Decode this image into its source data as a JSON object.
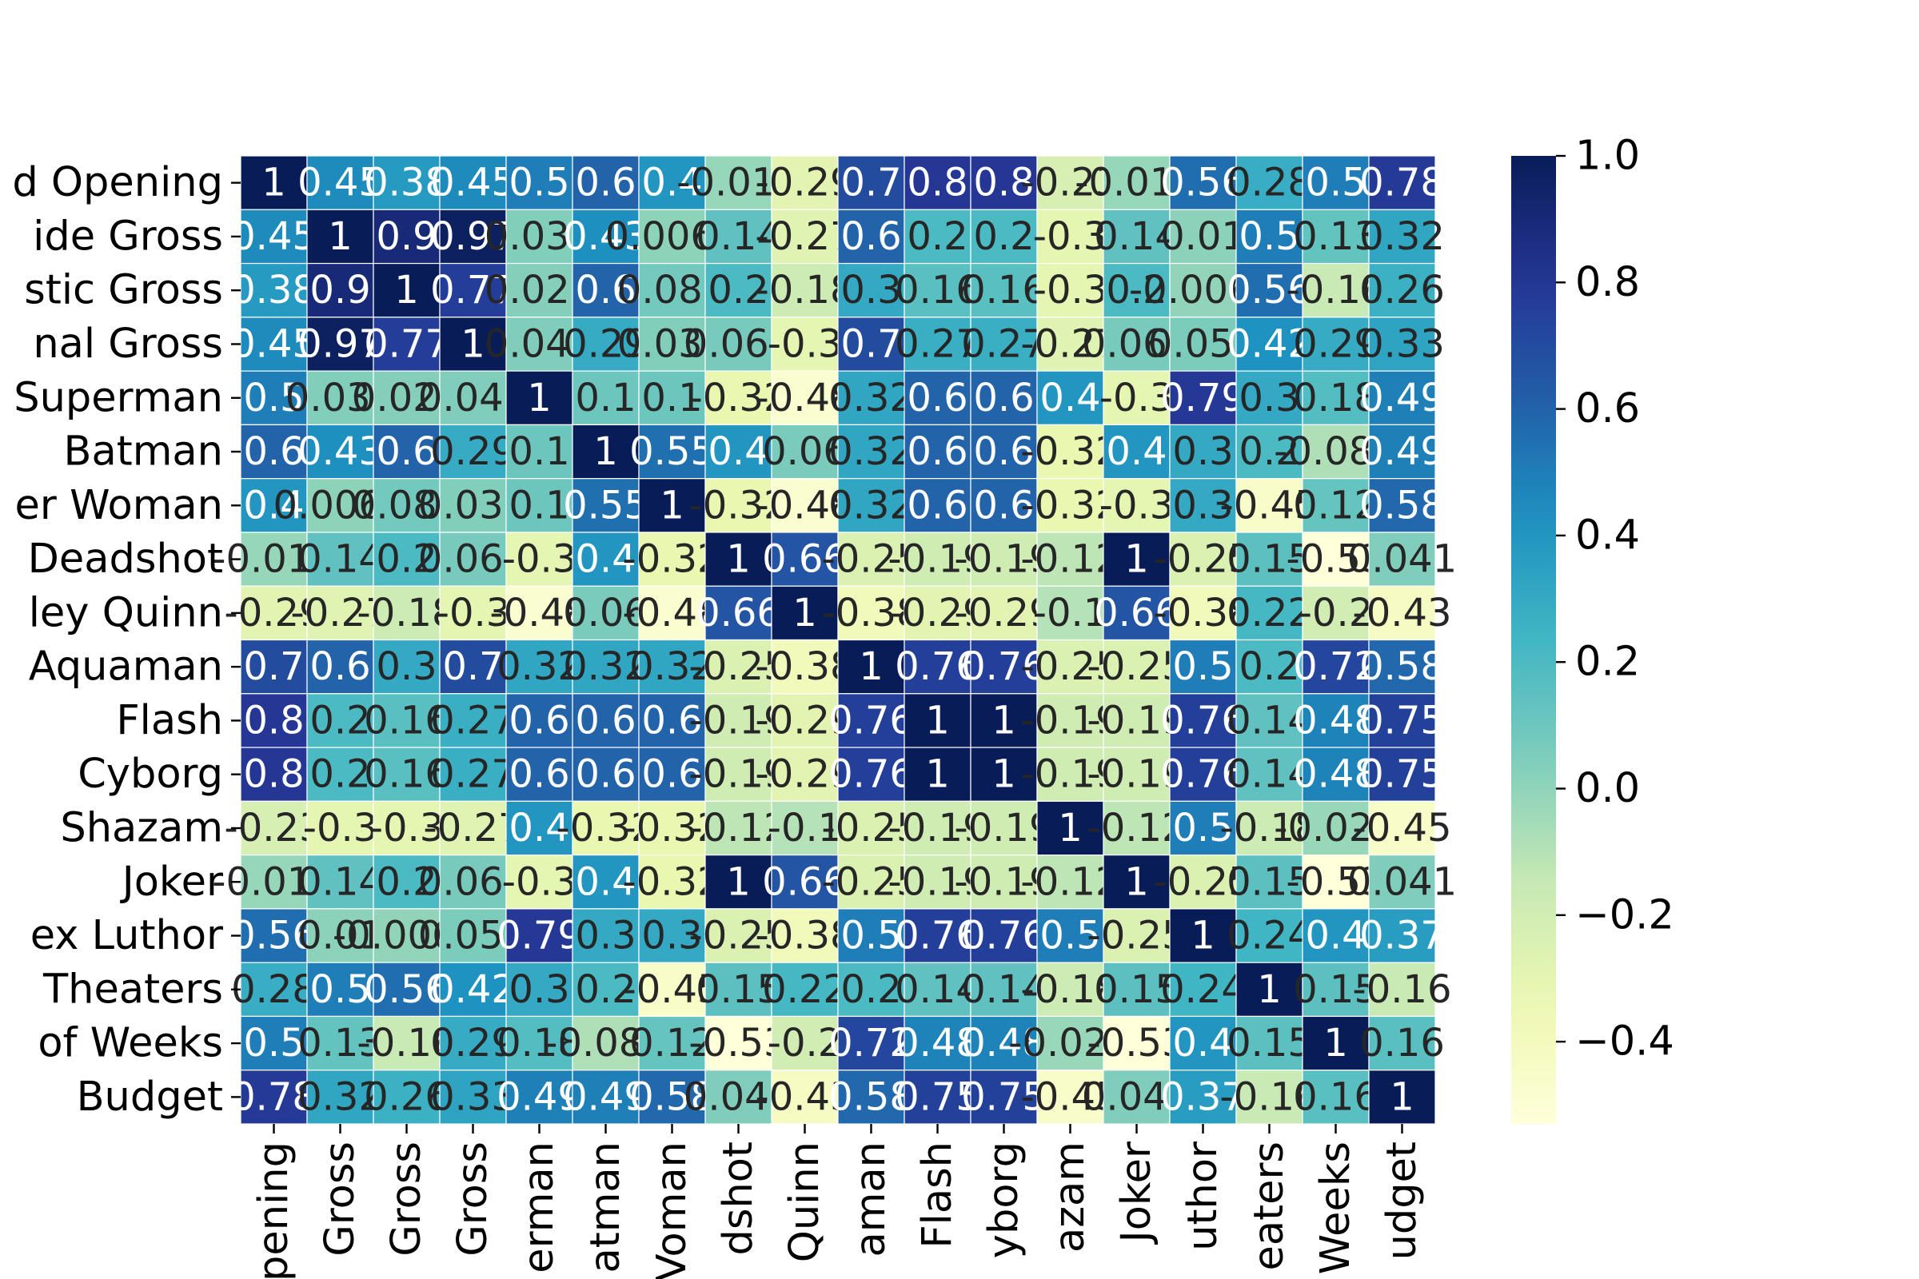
{
  "chart_data": {
    "type": "heatmap",
    "title": "",
    "xlabel": "",
    "ylabel": "",
    "colormap": "YlGnBu",
    "vmin": -0.53,
    "vmax": 1.0,
    "row_labels_visible": [
      "d Opening",
      "ide Gross",
      "stic Gross",
      "nal Gross",
      "Superman",
      "Batman",
      "er Woman",
      "Deadshot",
      "ley Quinn",
      "Aquaman",
      "Flash",
      "Cyborg",
      "Shazam",
      "Joker",
      "ex Luthor",
      "Theaters",
      "of Weeks",
      "Budget"
    ],
    "col_labels_visible": [
      "pening",
      "Gross",
      "Gross",
      "Gross",
      "erman",
      "atman",
      "Voman",
      "dshot",
      "Quinn",
      "aman",
      "Flash",
      "yborg",
      "azam",
      "Joker",
      "uthor",
      "eaters",
      "Weeks",
      "udget"
    ],
    "colorbar_ticks": [
      1.0,
      0.8,
      0.6,
      0.4,
      0.2,
      0.0,
      -0.2,
      -0.4
    ],
    "colorbar_tick_labels": [
      "1.0",
      "0.8",
      "0.6",
      "0.4",
      "0.2",
      "0.0",
      "−0.2",
      "−0.4"
    ],
    "values": [
      [
        1,
        0.45,
        0.38,
        0.45,
        0.5,
        0.6,
        0.4,
        -0.017,
        -0.29,
        0.7,
        0.8,
        0.8,
        -0.23,
        -0.017,
        0.56,
        0.28,
        0.5,
        0.78
      ],
      [
        0.45,
        1,
        0.9,
        0.97,
        0.039,
        0.43,
        0.0061,
        0.14,
        -0.27,
        0.6,
        0.2,
        0.2,
        -0.3,
        0.14,
        0.01,
        0.5,
        0.13,
        0.32
      ],
      [
        0.38,
        0.9,
        1,
        0.77,
        0.029,
        0.6,
        0.081,
        0.2,
        -0.18,
        0.3,
        0.16,
        0.16,
        -0.3,
        0.2,
        -0.0062,
        0.56,
        -0.16,
        0.26
      ],
      [
        0.45,
        0.97,
        0.77,
        1,
        0.042,
        0.29,
        0.038,
        0.065,
        -0.3,
        0.7,
        0.27,
        0.27,
        -0.27,
        0.065,
        0.052,
        0.42,
        0.29,
        0.33
      ],
      [
        0.5,
        0.039,
        0.029,
        0.042,
        1,
        0.1,
        0.1,
        -0.32,
        -0.48,
        0.32,
        0.6,
        0.6,
        0.4,
        -0.3,
        0.79,
        0.3,
        0.18,
        0.49
      ],
      [
        0.6,
        0.43,
        0.6,
        0.29,
        0.1,
        1,
        0.55,
        0.4,
        0.06,
        0.32,
        0.6,
        0.6,
        -0.32,
        0.4,
        0.3,
        0.2,
        -0.081,
        0.49
      ],
      [
        0.4,
        0.0061,
        0.081,
        0.038,
        0.1,
        0.55,
        1,
        -0.32,
        -0.48,
        0.32,
        0.6,
        0.6,
        -0.32,
        -0.3,
        0.3,
        -0.45,
        0.12,
        0.58
      ],
      [
        -0.017,
        0.14,
        0.2,
        0.065,
        -0.3,
        0.4,
        -0.32,
        1,
        0.66,
        -0.25,
        -0.19,
        -0.19,
        -0.12,
        1,
        -0.25,
        0.15,
        -0.53,
        0.041
      ],
      [
        -0.29,
        -0.27,
        -0.18,
        -0.3,
        -0.48,
        0.06,
        -0.48,
        0.66,
        1,
        -0.38,
        -0.29,
        -0.29,
        -0.1,
        0.66,
        -0.38,
        0.22,
        -0.2,
        -0.43
      ],
      [
        0.7,
        0.6,
        0.3,
        0.7,
        0.32,
        0.32,
        0.32,
        -0.25,
        -0.38,
        1,
        0.76,
        0.76,
        -0.25,
        -0.25,
        0.5,
        0.2,
        0.72,
        0.58
      ],
      [
        0.8,
        0.2,
        0.16,
        0.27,
        0.6,
        0.6,
        0.6,
        -0.19,
        -0.29,
        0.76,
        1,
        1,
        -0.19,
        -0.19,
        0.76,
        0.14,
        0.48,
        0.75
      ],
      [
        0.8,
        0.2,
        0.16,
        0.27,
        0.6,
        0.6,
        0.6,
        -0.19,
        -0.29,
        0.76,
        1,
        1,
        -0.19,
        -0.19,
        0.76,
        0.14,
        0.48,
        0.75
      ],
      [
        -0.23,
        -0.3,
        -0.3,
        -0.27,
        0.4,
        -0.32,
        -0.32,
        -0.12,
        -0.1,
        -0.25,
        -0.19,
        -0.19,
        1,
        -0.12,
        0.5,
        -0.18,
        -0.024,
        -0.45
      ],
      [
        -0.017,
        0.14,
        0.2,
        0.065,
        -0.3,
        0.4,
        -0.32,
        1,
        0.66,
        -0.25,
        -0.19,
        -0.19,
        -0.12,
        1,
        -0.25,
        0.15,
        -0.53,
        0.041
      ],
      [
        0.56,
        0.01,
        -0.0062,
        0.052,
        0.79,
        0.3,
        0.3,
        -0.25,
        -0.38,
        0.5,
        0.76,
        0.76,
        0.5,
        -0.25,
        1,
        0.24,
        0.4,
        0.37
      ],
      [
        0.28,
        0.5,
        0.56,
        0.42,
        0.3,
        0.2,
        -0.45,
        0.15,
        0.22,
        0.2,
        0.14,
        0.14,
        -0.18,
        0.15,
        0.24,
        1,
        0.15,
        -0.16
      ],
      [
        0.5,
        0.13,
        -0.16,
        0.29,
        0.18,
        -0.081,
        0.12,
        -0.53,
        -0.2,
        0.72,
        0.48,
        0.48,
        -0.024,
        -0.53,
        0.4,
        0.15,
        1,
        0.16
      ],
      [
        0.78,
        0.32,
        0.26,
        0.33,
        0.49,
        0.49,
        0.58,
        0.041,
        -0.43,
        0.58,
        0.75,
        0.75,
        -0.45,
        0.041,
        0.37,
        -0.16,
        0.16,
        1
      ]
    ],
    "annotations_visible": [
      [
        "1",
        "0.45",
        "0.38",
        "0.45",
        "0.5",
        "0.6",
        "0.4",
        "-0.017",
        "-0.29",
        "0.7",
        "0.8",
        "0.8",
        "-0.23",
        "-0.017",
        "0.56",
        "0.28",
        "0.5",
        "0.78"
      ],
      [
        "0.45",
        "1",
        "0.9",
        "0.97",
        "0.039",
        "0.43",
        "0.0061",
        "0.14",
        "-0.27",
        "0.6",
        "0.2",
        "0.2",
        "-0.3",
        "0.14",
        "0.01",
        "0.5",
        "0.13",
        "0.32"
      ],
      [
        "0.38",
        "0.9",
        "1",
        "0.77",
        "0.029",
        "0.6",
        "0.081",
        "0.2",
        "-0.18",
        "0.3",
        "0.16",
        "0.16",
        "-0.3",
        "0.2",
        "-0.0062",
        "0.56",
        "-0.16",
        "0.26"
      ],
      [
        "0.45",
        "0.97",
        "0.77",
        "1",
        "0.042",
        "0.29",
        "0.038",
        "0.065",
        "-0.3",
        "0.7",
        "0.27",
        "0.27",
        "-0.27",
        "0.065",
        "0.052",
        "0.42",
        "0.29",
        "0.33"
      ],
      [
        "0.5",
        "0.039",
        "0.029",
        "0.042",
        "1",
        "0.1",
        "0.1",
        "-0.32",
        "-0.48",
        "0.32",
        "0.6",
        "0.6",
        "0.4",
        "-0.3",
        "0.79",
        "0.3",
        "0.18",
        "0.49"
      ],
      [
        "0.6",
        "0.43",
        "0.6",
        "0.29",
        "0.1",
        "1",
        "0.55",
        "0.4",
        "0.06",
        "0.32",
        "0.6",
        "0.6",
        "-0.32",
        "0.4",
        "0.3",
        "0.2",
        "-0.081",
        "0.49"
      ],
      [
        "0.4",
        "0.0061",
        "0.081",
        "0.038",
        "0.1",
        "0.55",
        "1",
        "-0.32",
        "-0.48",
        "0.32",
        "0.6",
        "0.6",
        "-0.32",
        "-0.3",
        "0.3",
        "-0.45",
        "0.12",
        "0.58"
      ],
      [
        "-0.017",
        "0.14",
        "0.2",
        "0.065",
        "-0.3",
        "0.4",
        "-0.32",
        "1",
        "0.66",
        "-0.25",
        "-0.19",
        "-0.19",
        "-0.12",
        "1",
        "-0.25",
        "0.15",
        "-0.53",
        "0.041"
      ],
      [
        "-0.29",
        "-0.27",
        "-0.18",
        "-0.3",
        "-0.48",
        "0.06",
        "-0.48",
        "0.66",
        "1",
        "-0.38",
        "-0.29",
        "-0.29",
        "-0.1",
        "0.66",
        "-0.38",
        "0.22",
        "-0.2",
        "-0.43"
      ],
      [
        "0.7",
        "0.6",
        "0.3",
        "0.7",
        "0.32",
        "0.32",
        "0.32",
        "-0.25",
        "-0.38",
        "1",
        "0.76",
        "0.76",
        "-0.25",
        "-0.25",
        "0.5",
        "0.2",
        "0.72",
        "0.58"
      ],
      [
        "0.8",
        "0.2",
        "0.16",
        "0.27",
        "0.6",
        "0.6",
        "0.6",
        "-0.19",
        "-0.29",
        "0.76",
        "1",
        "1",
        "-0.19",
        "-0.19",
        "0.76",
        "0.14",
        "0.48",
        "0.75"
      ],
      [
        "0.8",
        "0.2",
        "0.16",
        "0.27",
        "0.6",
        "0.6",
        "0.6",
        "-0.19",
        "-0.29",
        "0.76",
        "1",
        "1",
        "-0.19",
        "-0.19",
        "0.76",
        "0.14",
        "0.48",
        "0.75"
      ],
      [
        "-0.23",
        "-0.3",
        "-0.3",
        "-0.27",
        "0.4",
        "-0.32",
        "-0.32",
        "-0.12",
        "-0.1",
        "-0.25",
        "-0.19",
        "-0.19",
        "1",
        "-0.12",
        "0.5",
        "-0.18",
        "-0.024",
        "-0.45"
      ],
      [
        "-0.017",
        "0.14",
        "0.2",
        "0.065",
        "-0.3",
        "0.4",
        "-0.32",
        "1",
        "0.66",
        "-0.25",
        "-0.19",
        "-0.19",
        "-0.12",
        "1",
        "-0.25",
        "0.15",
        "-0.53",
        "0.041"
      ],
      [
        "0.56",
        "0.01",
        "-0.0062",
        "0.052",
        "0.79",
        "0.3",
        "0.3",
        "-0.25",
        "-0.38",
        "0.5",
        "0.76",
        "0.76",
        "0.5",
        "-0.25",
        "1",
        "0.24",
        "0.4",
        "0.37"
      ],
      [
        "0.28",
        "0.5",
        "0.56",
        "0.42",
        "0.3",
        "0.2",
        "-0.45",
        "0.15",
        "0.22",
        "0.2",
        "0.14",
        "0.14",
        "-0.18",
        "0.15",
        "0.24",
        "1",
        "0.15",
        "-0.16"
      ],
      [
        "0.5",
        "0.13",
        "-0.16",
        "0.29",
        "0.18",
        "-0.081",
        "0.12",
        "-0.53",
        "-0.2",
        "0.72",
        "0.48",
        "0.48",
        "-0.024",
        "-0.53",
        "0.4",
        "0.15",
        "1",
        "0.16"
      ],
      [
        "0.78",
        "0.32",
        "0.26",
        "0.33",
        "0.49",
        "0.49",
        "0.58",
        "0.041",
        "-0.43",
        "0.58",
        "0.75",
        "0.75",
        "-0.45",
        "0.041",
        "0.37",
        "-0.16",
        "0.16",
        "1"
      ]
    ],
    "grid": true,
    "legend": "colorbar-right"
  }
}
